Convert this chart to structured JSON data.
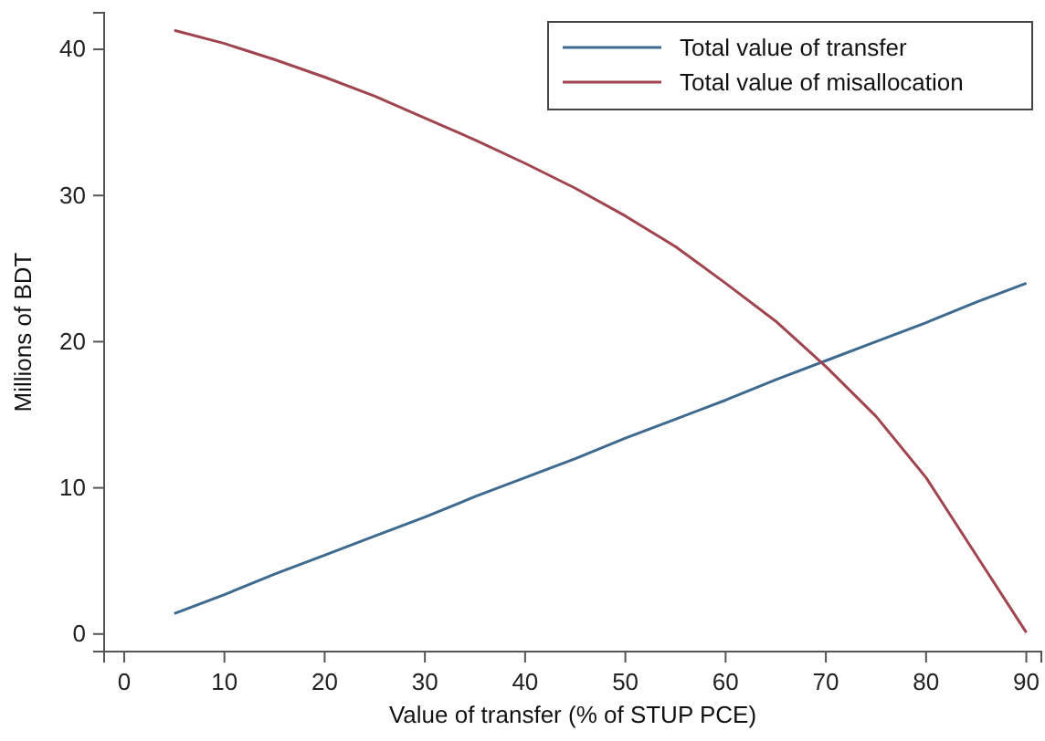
{
  "chart_data": {
    "type": "line",
    "xlabel": "Value of transfer (% of STUP PCE)",
    "ylabel": "Millions of BDT",
    "x": [
      5,
      10,
      15,
      20,
      25,
      30,
      35,
      40,
      45,
      50,
      55,
      60,
      65,
      70,
      75,
      80,
      85,
      90
    ],
    "series": [
      {
        "name": "Total value of transfer",
        "color": "#3e6a8f",
        "values": [
          1.4,
          2.7,
          4.1,
          5.4,
          6.7,
          8.0,
          9.4,
          10.7,
          12.0,
          13.4,
          14.7,
          16.0,
          17.4,
          18.7,
          20.0,
          21.3,
          22.7,
          24.0
        ]
      },
      {
        "name": "Total value of misallocation",
        "color": "#a0454f",
        "values": [
          41.3,
          40.4,
          39.3,
          38.1,
          36.8,
          35.3,
          33.8,
          32.2,
          30.5,
          28.6,
          26.5,
          24.0,
          21.4,
          18.3,
          14.9,
          10.7,
          5.4,
          0.1
        ]
      }
    ],
    "xlim": [
      -2,
      91.5
    ],
    "xticks": [
      0,
      10,
      20,
      30,
      40,
      50,
      60,
      70,
      80,
      90
    ],
    "ylim": [
      -1.2,
      42.5
    ],
    "yticks": [
      0,
      10,
      20,
      30,
      40
    ],
    "grid": false,
    "legend": "top right",
    "marker": "none",
    "line_style": "solid"
  }
}
